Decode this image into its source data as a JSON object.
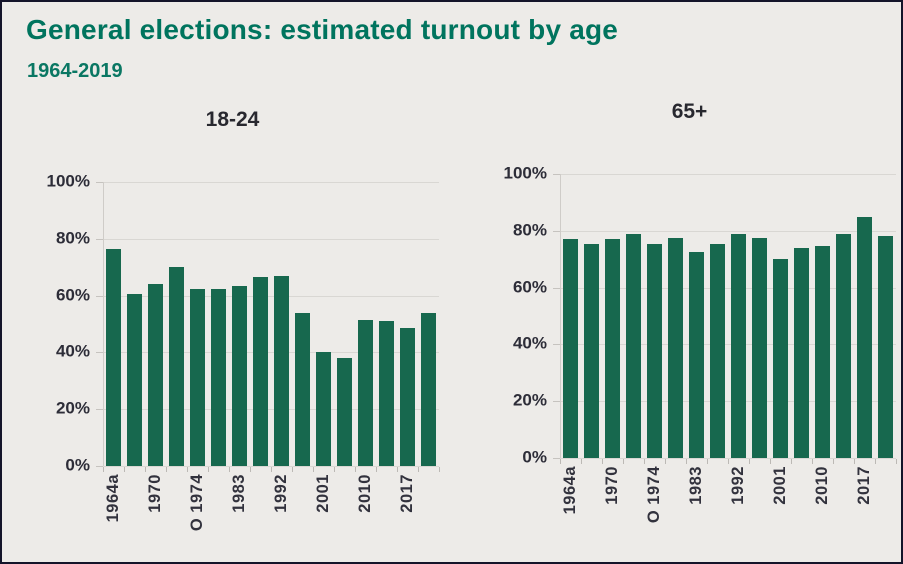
{
  "header": {
    "title": "General elections: estimated turnout by age",
    "subtitle": "1964-2019"
  },
  "colors": {
    "background": "#edebe8",
    "border": "#14142a",
    "title_teal": "#00745e",
    "bar_green": "#17684e",
    "gridline": "#d9d7d3",
    "axis_text": "#2d2d38"
  },
  "chart_data": [
    {
      "type": "bar",
      "title": "18-24",
      "categories": [
        "1964a",
        "",
        "1970",
        "",
        "O 1974",
        "",
        "1983",
        "",
        "1992",
        "",
        "2001",
        "",
        "2010",
        "",
        "2017",
        ""
      ],
      "values": [
        76.5,
        60.5,
        64,
        70,
        62.5,
        62.5,
        63.5,
        66.5,
        67,
        54,
        40,
        38,
        51.5,
        51,
        48.5,
        54
      ],
      "ylim": [
        0,
        100
      ],
      "y_ticks": [
        0,
        20,
        40,
        60,
        80,
        100
      ],
      "y_tick_labels": [
        "0%",
        "20%",
        "40%",
        "60%",
        "80%",
        "100%"
      ],
      "grid": true,
      "legend": false
    },
    {
      "type": "bar",
      "title": "65+",
      "categories": [
        "1964a",
        "",
        "1970",
        "",
        "O 1974",
        "",
        "1983",
        "",
        "1992",
        "",
        "2001",
        "",
        "2010",
        "",
        "2017",
        ""
      ],
      "values": [
        77,
        75.5,
        77,
        79,
        75.5,
        77.5,
        72.5,
        75.5,
        79,
        77.5,
        70,
        74,
        74.5,
        79,
        85,
        78
      ],
      "ylim": [
        0,
        100
      ],
      "y_ticks": [
        0,
        20,
        40,
        60,
        80,
        100
      ],
      "y_tick_labels": [
        "0%",
        "20%",
        "40%",
        "60%",
        "80%",
        "100%"
      ],
      "grid": true,
      "legend": false
    }
  ]
}
